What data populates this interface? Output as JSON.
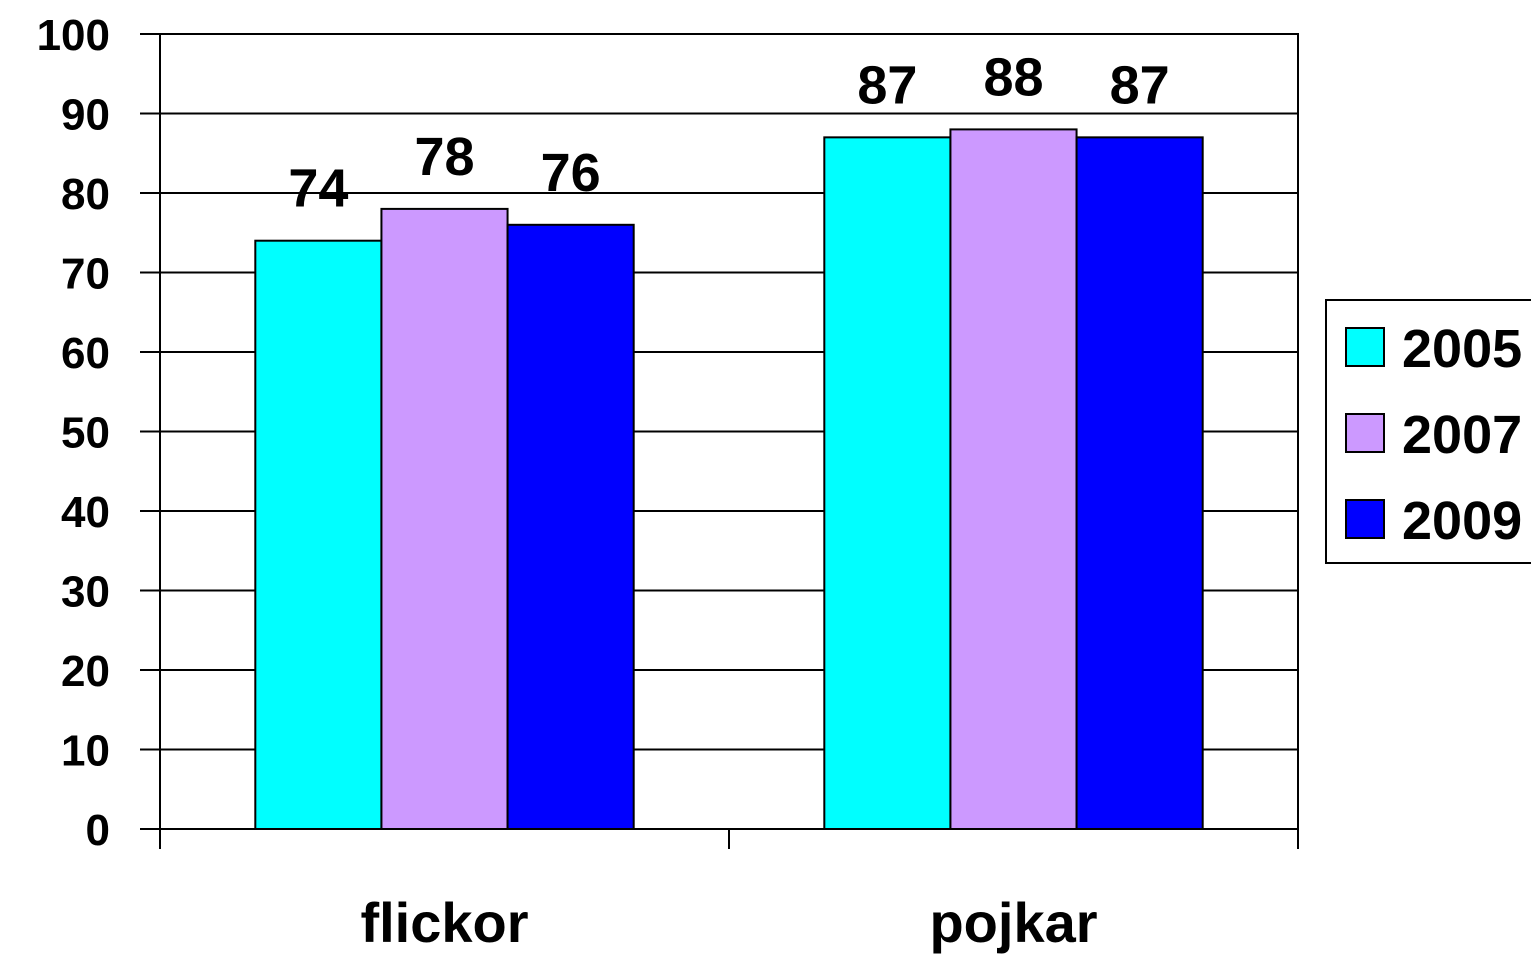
{
  "chart_data": {
    "type": "bar",
    "categories": [
      "flickor",
      "pojkar"
    ],
    "series": [
      {
        "name": "2005",
        "values": [
          74,
          87
        ],
        "color": "#00FFFF"
      },
      {
        "name": "2007",
        "values": [
          78,
          88
        ],
        "color": "#CC99FF"
      },
      {
        "name": "2009",
        "values": [
          76,
          87
        ],
        "color": "#0000FF"
      }
    ],
    "yticks": [
      "0",
      "10",
      "20",
      "30",
      "40",
      "50",
      "60",
      "70",
      "80",
      "90",
      "100"
    ],
    "ylim": [
      0,
      100
    ],
    "grid": true,
    "legend": "right",
    "data_labels": true
  }
}
